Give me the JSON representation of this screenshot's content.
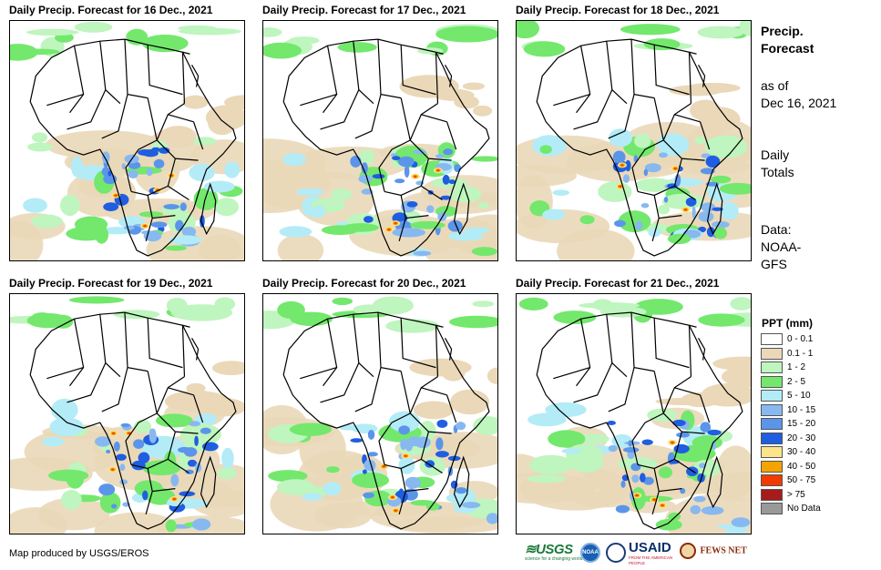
{
  "panels": [
    {
      "title": "Daily Precip. Forecast for 16 Dec., 2021"
    },
    {
      "title": "Daily Precip. Forecast for 17 Dec., 2021"
    },
    {
      "title": "Daily Precip. Forecast for 18 Dec., 2021"
    },
    {
      "title": "Daily Precip. Forecast for 19 Dec., 2021"
    },
    {
      "title": "Daily Precip. Forecast for 20 Dec., 2021"
    },
    {
      "title": "Daily Precip. Forecast for 21 Dec., 2021"
    }
  ],
  "sidebar": {
    "title_line1": "Precip.",
    "title_line2": "Forecast",
    "asof_line1": "as of",
    "asof_line2": "Dec 16, 2021",
    "totals_line1": "Daily",
    "totals_line2": "Totals",
    "data_line1": "Data:",
    "data_line2": "NOAA-",
    "data_line3": "GFS"
  },
  "legend": {
    "title": "PPT (mm)",
    "items": [
      {
        "label": "0 - 0.1",
        "color": "#ffffff"
      },
      {
        "label": "0.1 - 1",
        "color": "#ead8b8"
      },
      {
        "label": "1 - 2",
        "color": "#bff5be"
      },
      {
        "label": "2 - 5",
        "color": "#73e86d"
      },
      {
        "label": "5 - 10",
        "color": "#b3ecf7"
      },
      {
        "label": "10 - 15",
        "color": "#88b8f0"
      },
      {
        "label": "15 - 20",
        "color": "#5b95ea"
      },
      {
        "label": "20 - 30",
        "color": "#1f5ee0"
      },
      {
        "label": "30 - 40",
        "color": "#fbe48a"
      },
      {
        "label": "40 - 50",
        "color": "#f5a300"
      },
      {
        "label": "50 - 75",
        "color": "#f03c00"
      },
      {
        "label": "> 75",
        "color": "#a61c1c"
      },
      {
        "label": "No Data",
        "color": "#999999"
      }
    ]
  },
  "footer": {
    "credit": "Map produced by USGS/EROS"
  },
  "logos": {
    "usgs": "USGS",
    "usgs_tagline": "science for a changing world",
    "noaa": "NOAA",
    "usaid": "USAID",
    "usaid_tagline": "FROM THE AMERICAN PEOPLE",
    "fewsnet": "FEWS NET"
  }
}
